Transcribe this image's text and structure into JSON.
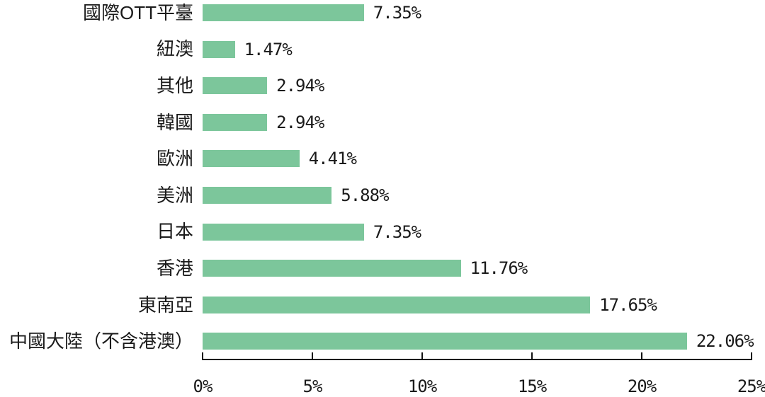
{
  "chart_data": {
    "type": "bar",
    "orientation": "horizontal",
    "title": "",
    "xlabel": "",
    "ylabel": "",
    "categories": [
      "國際OTT平臺",
      "紐澳",
      "其他",
      "韓國",
      "歐洲",
      "美洲",
      "日本",
      "香港",
      "東南亞",
      "中國大陸（不含港澳）"
    ],
    "values": [
      7.35,
      1.47,
      2.94,
      2.94,
      4.41,
      5.88,
      7.35,
      11.76,
      17.65,
      22.06
    ],
    "value_labels": [
      "7.35%",
      "1.47%",
      "2.94%",
      "2.94%",
      "4.41%",
      "5.88%",
      "7.35%",
      "11.76%",
      "17.65%",
      "22.06%"
    ],
    "xlim": [
      0,
      25
    ],
    "x_tick_values": [
      0,
      5,
      10,
      15,
      20,
      25
    ],
    "x_tick_labels": [
      "0%",
      "5%",
      "10%",
      "15%",
      "20%",
      "25%"
    ],
    "grid": false,
    "legend": false,
    "colors": {
      "bar_fill": "#7CC69B",
      "axis": "#111111",
      "text": "#1a1a1a",
      "background": "#ffffff"
    }
  }
}
